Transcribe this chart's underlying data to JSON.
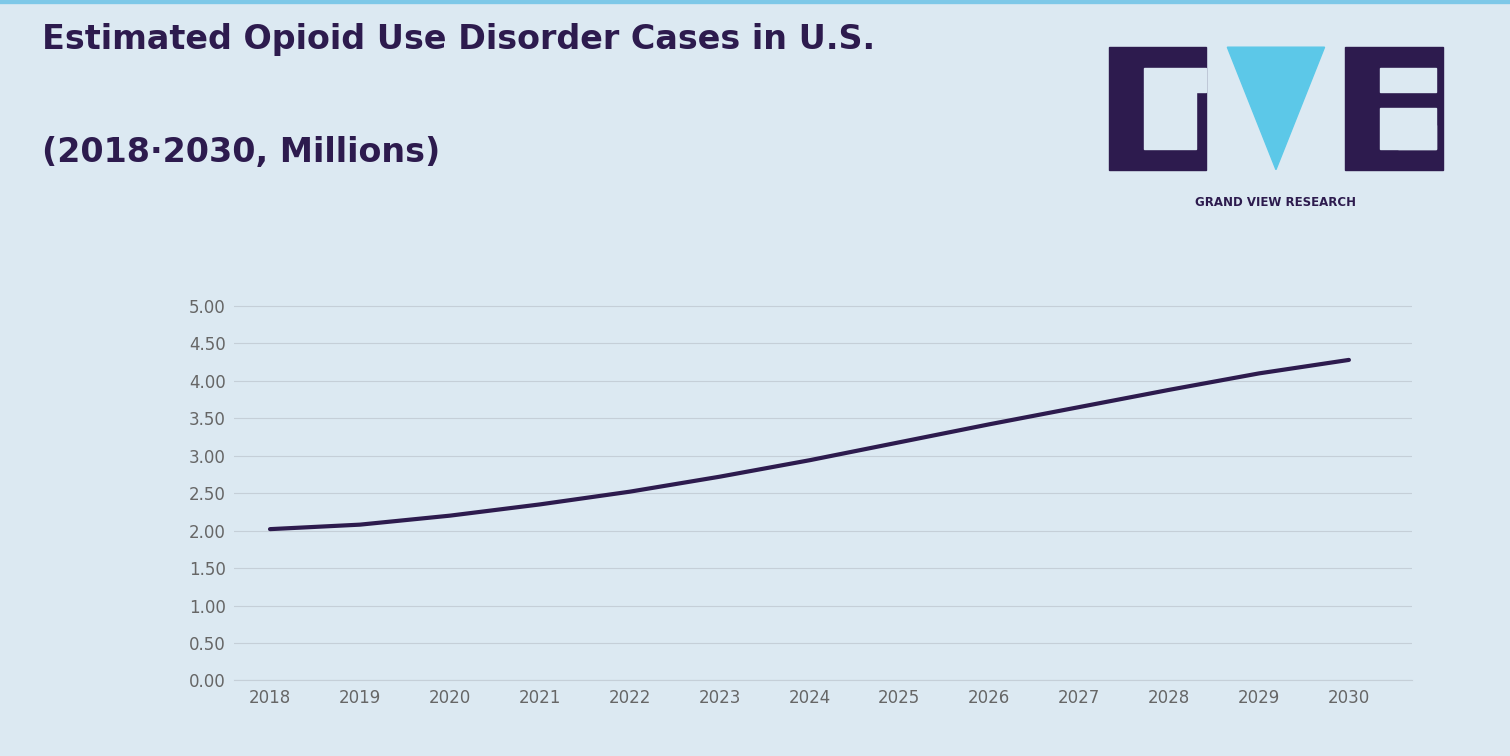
{
  "title_line1": "Estimated Opioid Use Disorder Cases in U.S.",
  "title_line2": "(2018·2030, Millions)",
  "years": [
    2018,
    2019,
    2020,
    2021,
    2022,
    2023,
    2024,
    2025,
    2026,
    2027,
    2028,
    2029,
    2030
  ],
  "values": [
    2.02,
    2.08,
    2.2,
    2.35,
    2.52,
    2.72,
    2.94,
    3.18,
    3.42,
    3.65,
    3.88,
    4.1,
    4.28
  ],
  "line_color": "#2d1b4e",
  "line_width": 3.0,
  "background_color": "#dce9f2",
  "plot_background_color": "#dce9f2",
  "grid_color": "#c5cfd8",
  "title_color": "#2d1b4e",
  "tick_color": "#666666",
  "ylim": [
    0.0,
    5.25
  ],
  "yticks": [
    0.0,
    0.5,
    1.0,
    1.5,
    2.0,
    2.5,
    3.0,
    3.5,
    4.0,
    4.5,
    5.0
  ],
  "ytick_labels": [
    "0.00",
    "0.50",
    "1.00",
    "1.50",
    "2.00",
    "2.50",
    "3.00",
    "3.50",
    "4.00",
    "4.50",
    "5.00"
  ],
  "title_fontsize": 24,
  "tick_fontsize": 12,
  "logo_color_dark": "#2d1b4e",
  "logo_color_cyan": "#5cc8e8",
  "logo_text": "GRAND VIEW RESEARCH",
  "logo_text_color": "#2d1b4e",
  "border_color": "#7ec8e8",
  "border_width": 6
}
